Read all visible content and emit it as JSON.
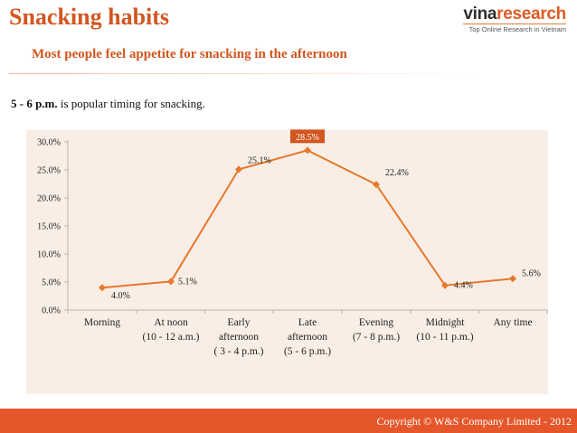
{
  "header": {
    "title": "Snacking habits",
    "subtitle": "Most people feel appetite for snacking in the afternoon",
    "logo_prefix": "vina",
    "logo_suffix": "research",
    "logo_tagline": "Top Online Research in Vietnam"
  },
  "note": {
    "emphasis": "5 - 6 p.m.",
    "rest": " is popular timing for snacking."
  },
  "footer": {
    "text": "Copyright © W&S Company Limited - 2012"
  },
  "colors": {
    "accent": "#d2561f",
    "line": "#e7782c",
    "panel": "#f8eee5",
    "footer": "#e5572a"
  },
  "chart_data": {
    "type": "line",
    "title": "",
    "xlabel": "",
    "ylabel": "",
    "ylim": [
      0,
      30
    ],
    "ytick_labels": [
      "0.0%",
      "5.0%",
      "10.0%",
      "15.0%",
      "20.0%",
      "25.0%",
      "30.0%"
    ],
    "categories": [
      [
        "Morning"
      ],
      [
        "At noon",
        "(10 - 12 a.m.)"
      ],
      [
        "Early",
        "afternoon",
        "( 3 - 4 p.m.)"
      ],
      [
        "Late",
        "afternoon",
        "(5 - 6 p.m.)"
      ],
      [
        "Evening",
        "(7 - 8 p.m.)"
      ],
      [
        "Midnight",
        "(10 - 11 p.m.)"
      ],
      [
        "Any time"
      ]
    ],
    "series": [
      {
        "values": [
          4.0,
          5.1,
          25.1,
          28.5,
          22.4,
          4.4,
          5.6
        ],
        "labels": [
          "4.0%",
          "5.1%",
          "25.1%",
          "28.5%",
          "22.4%",
          "4.4%",
          "5.6%"
        ]
      }
    ],
    "highlight_index": 3,
    "grid": false,
    "legend": "none"
  }
}
